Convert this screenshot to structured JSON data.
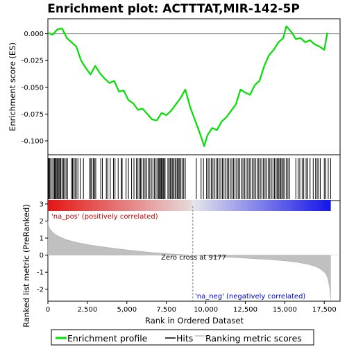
{
  "chart_data": {
    "type": "line",
    "title": "Enrichment plot: ACTTTAT,MIR-142-5P",
    "panels": {
      "enrichment": {
        "ylabel": "Enrichment score (ES)",
        "ylim": [
          -0.113,
          0.014
        ],
        "yticks": [
          "0.000",
          "-0.025",
          "-0.050",
          "-0.075",
          "-0.100"
        ],
        "ytick_values": [
          0.0,
          -0.025,
          -0.05,
          -0.075,
          -0.1
        ],
        "series": [
          {
            "name": "Enrichment profile",
            "x": [
              0,
              300,
              600,
              900,
              1200,
              1500,
              1800,
              2100,
              2400,
              2700,
              3000,
              3300,
              3600,
              3900,
              4200,
              4500,
              4800,
              5100,
              5400,
              5700,
              6000,
              6300,
              6600,
              6900,
              7200,
              7500,
              7800,
              8100,
              8400,
              8700,
              9000,
              9300,
              9600,
              9900,
              10100,
              10400,
              10700,
              11000,
              11300,
              11600,
              11900,
              12200,
              12500,
              12800,
              13100,
              13400,
              13700,
              14000,
              14300,
              14600,
              14900,
              15100,
              15400,
              15700,
              16000,
              16300,
              16600,
              16900,
              17200,
              17500,
              17700
            ],
            "y": [
              0.001,
              -0.001,
              0.004,
              0.005,
              -0.004,
              -0.008,
              -0.012,
              -0.025,
              -0.032,
              -0.038,
              -0.03,
              -0.037,
              -0.042,
              -0.046,
              -0.044,
              -0.054,
              -0.053,
              -0.062,
              -0.065,
              -0.071,
              -0.07,
              -0.075,
              -0.08,
              -0.081,
              -0.074,
              -0.076,
              -0.072,
              -0.066,
              -0.06,
              -0.052,
              -0.068,
              -0.08,
              -0.092,
              -0.105,
              -0.095,
              -0.088,
              -0.09,
              -0.082,
              -0.078,
              -0.072,
              -0.066,
              -0.052,
              -0.055,
              -0.057,
              -0.048,
              -0.044,
              -0.03,
              -0.02,
              -0.015,
              -0.008,
              -0.004,
              0.007,
              0.002,
              -0.005,
              -0.004,
              -0.008,
              -0.006,
              -0.01,
              -0.012,
              -0.015,
              0.001
            ],
            "color": "#00e000"
          }
        ]
      },
      "hits": {
        "positions": [
          40,
          90,
          140,
          260,
          350,
          420,
          470,
          520,
          580,
          640,
          700,
          760,
          820,
          900,
          980,
          1060,
          1150,
          1240,
          1480,
          1560,
          1640,
          1720,
          1800,
          1900,
          2050,
          2250,
          2650,
          2720,
          2790,
          2880,
          2960,
          3030,
          3350,
          3450,
          3700,
          3800,
          3950,
          4150,
          4250,
          4450,
          4650,
          4700,
          4950,
          5100,
          5300,
          5450,
          5600,
          5700,
          5780,
          5870,
          5950,
          6050,
          6150,
          6250,
          6350,
          6450,
          6550,
          6650,
          6750,
          6850,
          6950,
          7020,
          7080,
          7120,
          7180,
          7240,
          7300,
          7350,
          7420,
          7600,
          7680,
          7750,
          7820,
          7900,
          7950,
          8050,
          8120,
          8200,
          8270,
          8340,
          8420,
          8500,
          8600,
          8700,
          9400,
          9700,
          9850,
          10050,
          10150,
          10250,
          10350,
          10450,
          10550,
          10650,
          10750,
          10850,
          10950,
          11050,
          11150,
          11250,
          11350,
          11450,
          11550,
          11650,
          11750,
          11850,
          11950,
          12050,
          12150,
          12250,
          12350,
          12450,
          12550,
          12650,
          12750,
          12850,
          12950,
          13050,
          13150,
          13250,
          13350,
          13450,
          13550,
          13650,
          13750,
          13850,
          13950,
          14050,
          14150,
          14250,
          14350,
          14450,
          14520,
          14600,
          14680,
          14750,
          14820,
          14900,
          15000,
          15100,
          15200,
          15300,
          15700,
          15850,
          15950,
          16100,
          16200,
          16350,
          16450,
          16600,
          16800,
          16950,
          17050,
          17150,
          17250,
          17500,
          17600,
          17750,
          17900
        ]
      },
      "metric": {
        "ylabel": "Ranked list metric (PreRanked)",
        "ylim": [
          -2.7,
          3.2
        ],
        "yticks": [
          "3",
          "2",
          "1",
          "0",
          "-1",
          "-2"
        ],
        "ytick_values": [
          3,
          2,
          1,
          0,
          -1,
          -2
        ],
        "x": [
          0,
          50,
          150,
          300,
          500,
          800,
          1200,
          1800,
          2500,
          3500,
          4500,
          5500,
          6500,
          7500,
          8500,
          9177,
          10000,
          11000,
          12000,
          13000,
          14000,
          15000,
          15800,
          16400,
          16900,
          17200,
          17450,
          17600,
          17700,
          17780,
          17850,
          17900
        ],
        "values": [
          2.0,
          1.7,
          1.5,
          1.35,
          1.2,
          1.05,
          0.9,
          0.75,
          0.62,
          0.48,
          0.36,
          0.26,
          0.16,
          0.09,
          0.03,
          0.0,
          -0.04,
          -0.1,
          -0.15,
          -0.2,
          -0.26,
          -0.33,
          -0.42,
          -0.52,
          -0.65,
          -0.78,
          -0.95,
          -1.1,
          -1.3,
          -1.6,
          -2.0,
          -2.6
        ],
        "zero_cross_text": "Zero cross at 9177",
        "zero_cross": 9177,
        "pos_label": "'na_pos' (positively correlated)",
        "neg_label": "'na_neg' (negatively correlated)"
      }
    },
    "xlabel": "Rank in Ordered Dataset",
    "xlim": [
      0,
      18500
    ],
    "xticks": [
      "0",
      "2,500",
      "5,000",
      "7,500",
      "10,000",
      "12,500",
      "15,000",
      "17,500"
    ],
    "xtick_values": [
      0,
      2500,
      5000,
      7500,
      10000,
      12500,
      15000,
      17500
    ],
    "n_genes": 17900,
    "legend": [
      "Enrichment profile",
      "Hits",
      "Ranking metric scores"
    ],
    "colors": {
      "profile": "#00e000",
      "hits": "#000000",
      "metric_fill": "#c0c0c0",
      "pos_text": "#cc0000",
      "neg_text": "#0000cc",
      "zero_line": "#808080"
    }
  }
}
